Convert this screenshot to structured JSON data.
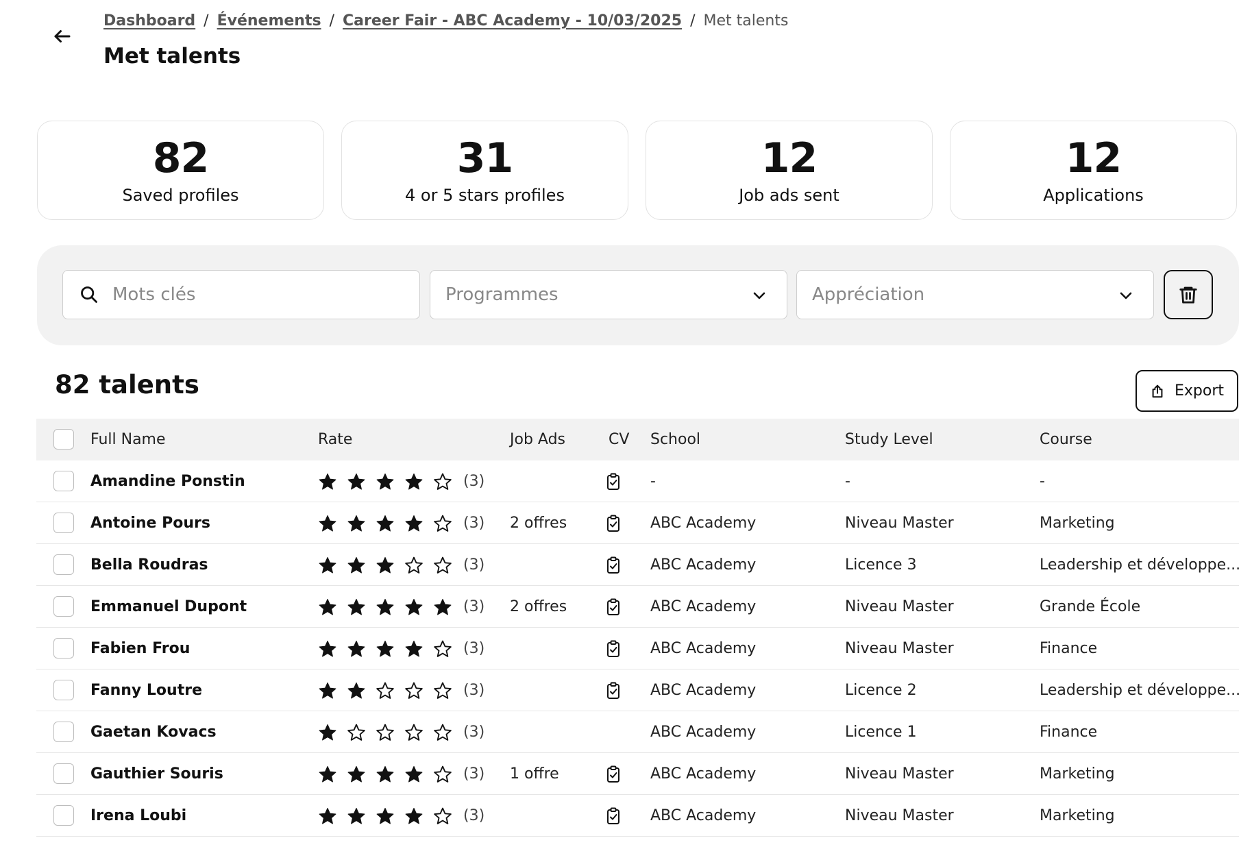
{
  "breadcrumb": {
    "items": [
      "Dashboard",
      "Événements",
      "Career Fair - ABC Academy - 10/03/2025"
    ],
    "current": "Met talents"
  },
  "page_title": "Met talents",
  "stats": [
    {
      "value": "82",
      "label": "Saved profiles"
    },
    {
      "value": "31",
      "label": "4 or 5 stars profiles"
    },
    {
      "value": "12",
      "label": "Job ads sent"
    },
    {
      "value": "12",
      "label": "Applications"
    }
  ],
  "filters": {
    "keywords_placeholder": "Mots clés",
    "programmes_placeholder": "Programmes",
    "appreciation_placeholder": "Appréciation"
  },
  "results": {
    "count_title": "82 talents",
    "export_label": "Export"
  },
  "table": {
    "columns": [
      "Full Name",
      "Rate",
      "Job Ads",
      "CV",
      "School",
      "Study Level",
      "Course"
    ],
    "rows": [
      {
        "name": "Amandine Ponstin",
        "rating": 4,
        "rate_count": "(3)",
        "job_ads": "",
        "cv": true,
        "school": "-",
        "level": "-",
        "course": "-"
      },
      {
        "name": "Antoine Pours",
        "rating": 4,
        "rate_count": "(3)",
        "job_ads": "2 offres",
        "cv": true,
        "school": "ABC Academy",
        "level": "Niveau Master",
        "course": "Marketing"
      },
      {
        "name": "Bella Roudras",
        "rating": 3,
        "rate_count": "(3)",
        "job_ads": "",
        "cv": true,
        "school": "ABC Academy",
        "level": "Licence 3",
        "course": "Leadership et développe..."
      },
      {
        "name": "Emmanuel Dupont",
        "rating": 5,
        "rate_count": "(3)",
        "job_ads": "2 offres",
        "cv": true,
        "school": "ABC Academy",
        "level": "Niveau Master",
        "course": "Grande École"
      },
      {
        "name": "Fabien Frou",
        "rating": 4,
        "rate_count": "(3)",
        "job_ads": "",
        "cv": true,
        "school": "ABC Academy",
        "level": "Niveau Master",
        "course": "Finance"
      },
      {
        "name": "Fanny Loutre",
        "rating": 2,
        "rate_count": "(3)",
        "job_ads": "",
        "cv": true,
        "school": "ABC Academy",
        "level": "Licence 2",
        "course": "Leadership et développe..."
      },
      {
        "name": "Gaetan Kovacs",
        "rating": 1,
        "rate_count": "(3)",
        "job_ads": "",
        "cv": false,
        "school": "ABC Academy",
        "level": "Licence 1",
        "course": "Finance"
      },
      {
        "name": "Gauthier Souris",
        "rating": 4,
        "rate_count": "(3)",
        "job_ads": "1 offre",
        "cv": true,
        "school": "ABC Academy",
        "level": "Niveau Master",
        "course": "Marketing"
      },
      {
        "name": "Irena Loubi",
        "rating": 4,
        "rate_count": "(3)",
        "job_ads": "",
        "cv": true,
        "school": "ABC Academy",
        "level": "Niveau Master",
        "course": "Marketing"
      }
    ]
  },
  "icons": {
    "back": "arrow-left-icon",
    "search": "search-icon",
    "dropdown": "chevron-down-icon",
    "clear_filters": "trash-icon",
    "export": "share-icon",
    "cv": "clipboard-check-icon",
    "star_filled": "star-filled-icon",
    "star_empty": "star-outline-icon"
  }
}
